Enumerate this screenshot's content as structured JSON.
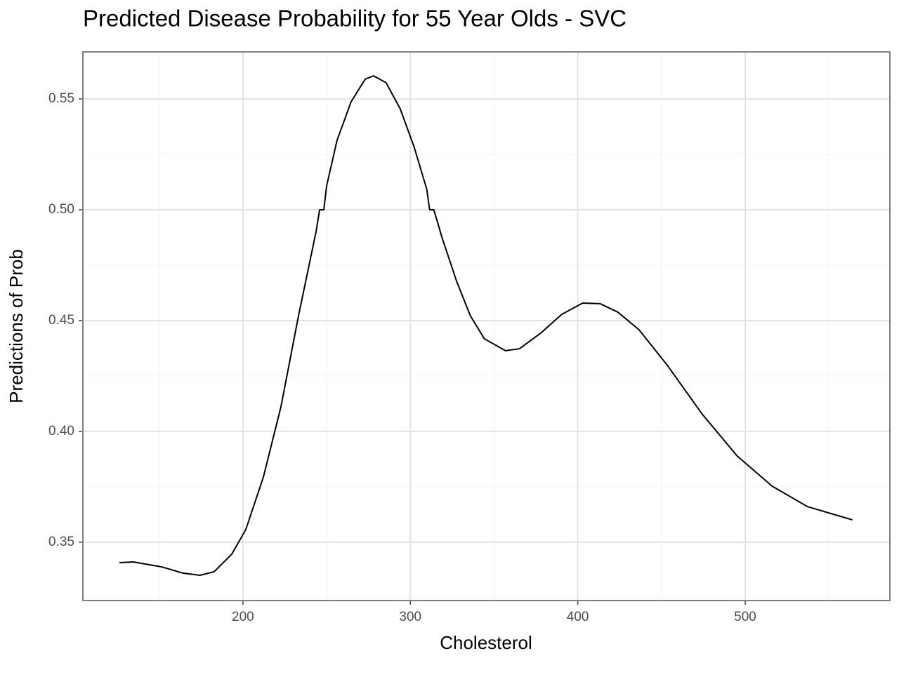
{
  "chart_data": {
    "type": "line",
    "title": "Predicted Disease Probability for 55 Year Olds - SVC",
    "x_label": "Cholesterol",
    "y_label": "Predictions of Prob",
    "x": [
      126.2,
      134.6,
      151.4,
      164.0,
      174.4,
      182.8,
      193.3,
      201.7,
      212.2,
      222.7,
      233.2,
      243.7,
      245.8,
      248.3,
      250.0,
      256.2,
      264.6,
      273.0,
      278.0,
      285.5,
      293.9,
      302.3,
      309.8,
      311.5,
      314.0,
      319.1,
      327.5,
      335.8,
      344.2,
      356.8,
      365.2,
      377.8,
      390.4,
      402.9,
      413.4,
      423.9,
      436.5,
      453.2,
      474.2,
      495.2,
      516.1,
      537.1,
      564.0
    ],
    "series": [
      {
        "color": "#000000",
        "values": [
          0.3408,
          0.3411,
          0.3389,
          0.3361,
          0.3351,
          0.3367,
          0.3446,
          0.3557,
          0.3794,
          0.4111,
          0.4522,
          0.4902,
          0.5,
          0.5,
          0.5108,
          0.5313,
          0.5487,
          0.5589,
          0.5604,
          0.5573,
          0.5456,
          0.5282,
          0.5092,
          0.5,
          0.5,
          0.487,
          0.468,
          0.4522,
          0.4418,
          0.4364,
          0.4373,
          0.4443,
          0.4528,
          0.4579,
          0.4576,
          0.4538,
          0.4459,
          0.4301,
          0.4079,
          0.3889,
          0.3753,
          0.3661,
          0.3601
        ]
      }
    ],
    "xlim": [
      104.4,
      586.4
    ],
    "ylim": [
      0.3237,
      0.5712
    ],
    "xticks": [
      200,
      300,
      400,
      500
    ],
    "yticks": [
      0.35,
      {
        "value": 0.4,
        "label": "0.40"
      },
      0.45,
      {
        "value": 0.5,
        "label": "0.50"
      },
      0.55
    ],
    "x_minor_ticks": [
      150,
      250,
      350,
      450,
      550
    ],
    "y_minor_ticks": [
      0.325,
      0.375,
      0.425,
      0.475,
      0.525
    ],
    "grid": true
  }
}
